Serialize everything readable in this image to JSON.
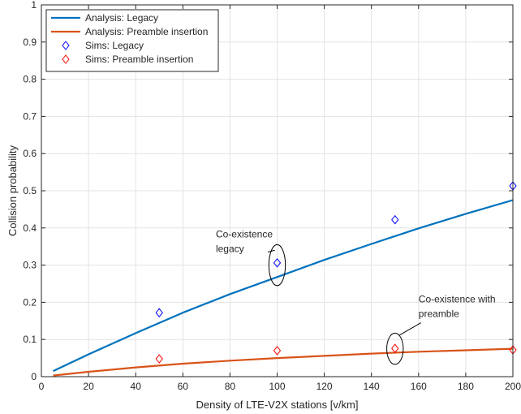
{
  "chart_data": {
    "type": "line",
    "xlabel": "Density of LTE-V2X stations [v/km]",
    "ylabel": "Collision probability",
    "xlim": [
      0,
      200
    ],
    "ylim": [
      0,
      1
    ],
    "xticks": [
      0,
      20,
      40,
      60,
      80,
      100,
      120,
      140,
      160,
      180,
      200
    ],
    "yticks": [
      0,
      0.1,
      0.2,
      0.3,
      0.4,
      0.5,
      0.6,
      0.7,
      0.8,
      0.9,
      1
    ],
    "ytick_labels": [
      "0",
      "0.1",
      "0.2",
      "0.3",
      "0.4",
      "0.5",
      "0.6",
      "0.7",
      "0.8",
      "0.9",
      "1"
    ],
    "grid": true,
    "legend_position": "top-left",
    "series": [
      {
        "name": "Analysis: Legacy",
        "kind": "line",
        "color": "#0072BD",
        "x": [
          5,
          20,
          40,
          60,
          80,
          100,
          120,
          140,
          160,
          180,
          200
        ],
        "y": [
          0.015,
          0.06,
          0.117,
          0.172,
          0.222,
          0.268,
          0.314,
          0.357,
          0.399,
          0.438,
          0.475
        ]
      },
      {
        "name": "Analysis: Preamble insertion",
        "kind": "line",
        "color": "#D95319",
        "x": [
          5,
          20,
          40,
          60,
          80,
          100,
          120,
          140,
          160,
          180,
          200
        ],
        "y": [
          0.003,
          0.013,
          0.025,
          0.035,
          0.043,
          0.05,
          0.056,
          0.062,
          0.067,
          0.071,
          0.075
        ]
      },
      {
        "name": "Sims: Legacy",
        "kind": "marker",
        "marker": "diamond",
        "color": "#0000FF",
        "x": [
          50,
          100,
          150,
          200
        ],
        "y": [
          0.172,
          0.306,
          0.422,
          0.513
        ]
      },
      {
        "name": "Sims: Preamble insertion",
        "kind": "marker",
        "marker": "diamond",
        "color": "#FF0000",
        "x": [
          50,
          100,
          150,
          200
        ],
        "y": [
          0.048,
          0.07,
          0.076,
          0.072
        ]
      }
    ],
    "annotations": [
      {
        "text_lines": [
          "Co-existence",
          "legacy"
        ],
        "ellipse_center": [
          100,
          0.3
        ],
        "ellipse_rx": 3.5,
        "ellipse_ry": 0.055,
        "text_anchor": [
          74,
          0.375
        ],
        "pointer_from": [
          96,
          0.335
        ],
        "pointer_to": [
          99,
          0.34
        ]
      },
      {
        "text_lines": [
          "Co-existence with",
          "preamble"
        ],
        "ellipse_center": [
          150,
          0.075
        ],
        "ellipse_rx": 3.5,
        "ellipse_ry": 0.042,
        "text_anchor": [
          160,
          0.2
        ],
        "pointer_from": [
          161,
          0.145
        ],
        "pointer_to": [
          152,
          0.112
        ]
      }
    ]
  }
}
